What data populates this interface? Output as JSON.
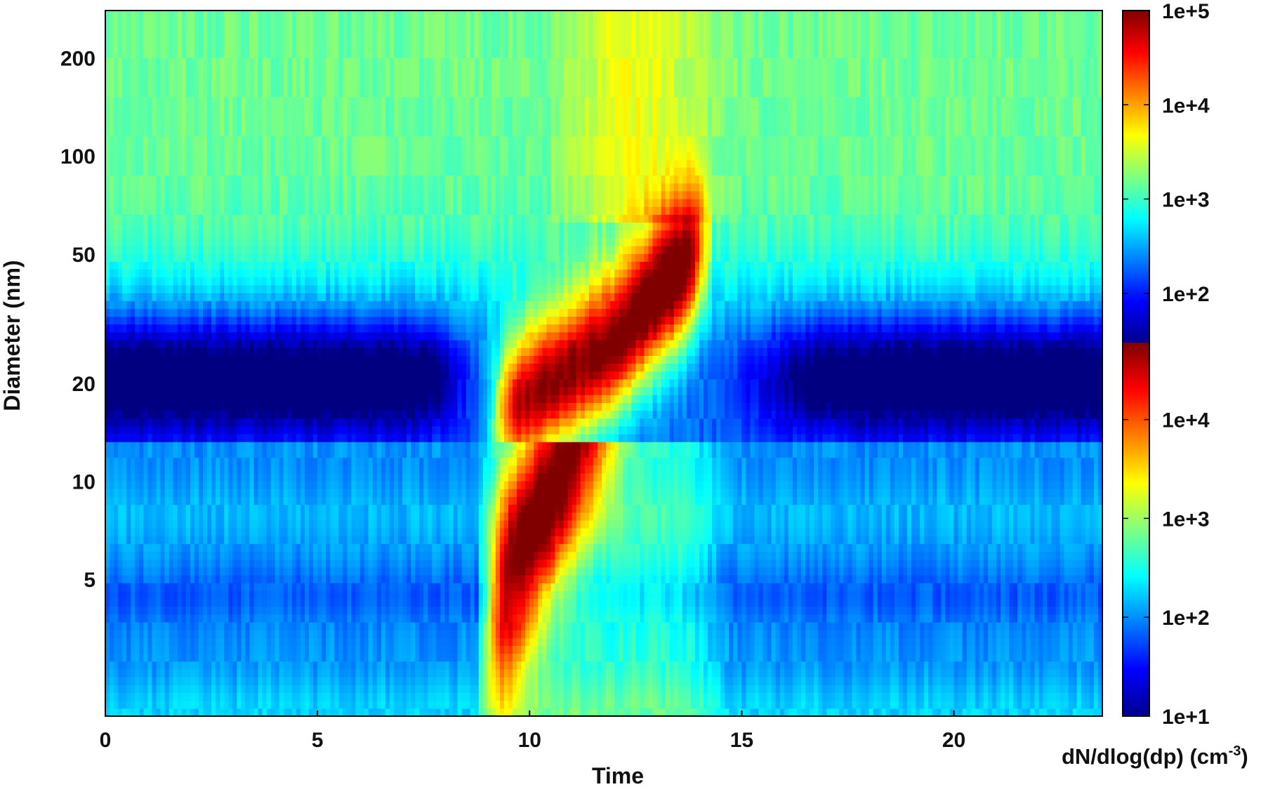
{
  "chart_data": {
    "type": "heatmap",
    "xlabel": "Time",
    "ylabel": "Diameter (nm)",
    "colorbar_label": "dN/dlog(dp) (cm",
    "colorbar_label_sup": "-3",
    "colorbar_label_end": ")",
    "x_range": [
      0,
      23.5
    ],
    "x_ticks": [
      0,
      5,
      10,
      15,
      20
    ],
    "y_scale": "log",
    "y_range": [
      1.9,
      280
    ],
    "y_ticks": [
      5,
      10,
      20,
      50,
      100,
      200
    ],
    "instrument_boundary_nm": 13.5,
    "colormap": "jet",
    "colorbar_upper": {
      "range": [
        30,
        100000
      ],
      "ticks": [
        "1e+2",
        "1e+3",
        "1e+4",
        "1e+5"
      ]
    },
    "colorbar_lower": {
      "range": [
        10,
        60000
      ],
      "ticks": [
        "1e+1",
        "1e+2",
        "1e+3",
        "1e+4"
      ]
    },
    "events": [
      {
        "name": "nucleation",
        "start_time": 9.0,
        "peak_time": 10.0,
        "end_time": 14.2,
        "peak_value": 30000
      }
    ],
    "background": {
      "accumulation_mode_value": 1500,
      "small_particle_value": 100,
      "upper_min_value": 50
    }
  }
}
